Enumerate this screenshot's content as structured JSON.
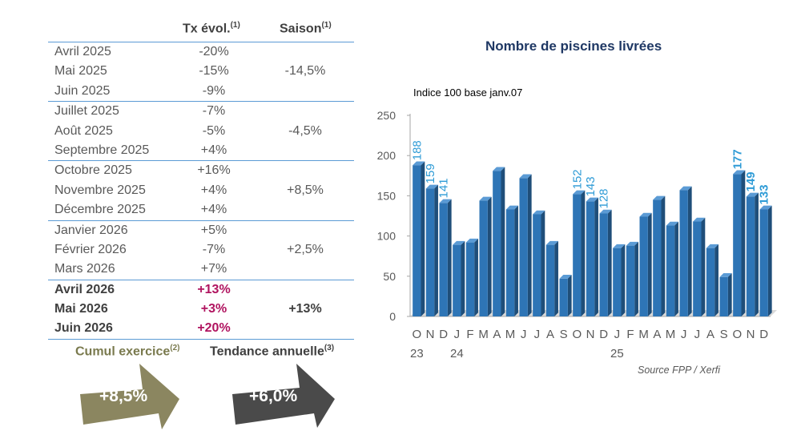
{
  "table": {
    "header_rate": "Tx évol.",
    "header_rate_note": "(1)",
    "header_season": "Saison",
    "header_season_note": "(1)",
    "groups": [
      {
        "season": "-14,5%",
        "rows": [
          {
            "month": "Avril 2025",
            "rate": "-20%"
          },
          {
            "month": "Mai 2025",
            "rate": "-15%"
          },
          {
            "month": "Juin 2025",
            "rate": "-9%"
          }
        ]
      },
      {
        "season": "-4,5%",
        "rows": [
          {
            "month": "Juillet 2025",
            "rate": "-7%"
          },
          {
            "month": "Août 2025",
            "rate": "-5%"
          },
          {
            "month": "Septembre 2025",
            "rate": "+4%"
          }
        ]
      },
      {
        "season": "+8,5%",
        "rows": [
          {
            "month": "Octobre 2025",
            "rate": "+16%"
          },
          {
            "month": "Novembre 2025",
            "rate": "+4%"
          },
          {
            "month": "Décembre 2025",
            "rate": "+4%"
          }
        ]
      },
      {
        "season": "+2,5%",
        "rows": [
          {
            "month": "Janvier 2026",
            "rate": "+5%"
          },
          {
            "month": "Février 2026",
            "rate": "-7%"
          },
          {
            "month": "Mars 2026",
            "rate": "+7%"
          }
        ]
      },
      {
        "season": "+13%",
        "highlight": true,
        "rows": [
          {
            "month": "Avril 2026",
            "rate": "+13%"
          },
          {
            "month": "Mai 2026",
            "rate": "+3%"
          },
          {
            "month": "Juin 2026",
            "rate": "+20%"
          }
        ]
      }
    ]
  },
  "cumul": {
    "title": "Cumul exercice",
    "note": "(2)",
    "value": "+8,5%"
  },
  "trend": {
    "title": "Tendance annuelle",
    "note": "(3)",
    "value": "+6,0%"
  },
  "colors": {
    "bar": "#2e75b6",
    "bar_dark": "#1f4e79",
    "data_label": "#2e9bd6",
    "arrow_cumul": "#8b8660",
    "arrow_trend": "#4a4a4a",
    "highlight_rate": "#b0135f"
  },
  "chart_data": {
    "type": "bar",
    "title": "Nombre de piscines livrées",
    "note": "Indice 100 base janv.07",
    "source": "Source FPP / Xerfi",
    "ylim": [
      0,
      250
    ],
    "yticks": [
      0,
      50,
      100,
      150,
      200,
      250
    ],
    "categories": [
      "O",
      "N",
      "D",
      "J",
      "F",
      "M",
      "A",
      "M",
      "J",
      "J",
      "A",
      "S",
      "O",
      "N",
      "D",
      "J",
      "F",
      "M",
      "A",
      "M",
      "J",
      "J",
      "A",
      "S",
      "O",
      "N",
      "D"
    ],
    "year_labels": [
      {
        "index": 0,
        "label": "23"
      },
      {
        "index": 3,
        "label": "24"
      },
      {
        "index": 15,
        "label": "25"
      }
    ],
    "values": [
      188,
      159,
      141,
      89,
      92,
      144,
      181,
      133,
      172,
      127,
      89,
      47,
      152,
      143,
      128,
      85,
      88,
      124,
      145,
      113,
      157,
      118,
      85,
      49,
      177,
      149,
      133
    ],
    "labeled_values": [
      "188",
      "159",
      "141",
      null,
      null,
      null,
      null,
      null,
      null,
      null,
      null,
      null,
      "152",
      "143",
      "128",
      null,
      null,
      null,
      null,
      null,
      null,
      null,
      null,
      null,
      "177",
      "149",
      "133"
    ],
    "labeled_bold": [
      false,
      false,
      false,
      false,
      false,
      false,
      false,
      false,
      false,
      false,
      false,
      false,
      false,
      false,
      false,
      false,
      false,
      false,
      false,
      false,
      false,
      false,
      false,
      false,
      true,
      true,
      true
    ],
    "grid": false
  }
}
